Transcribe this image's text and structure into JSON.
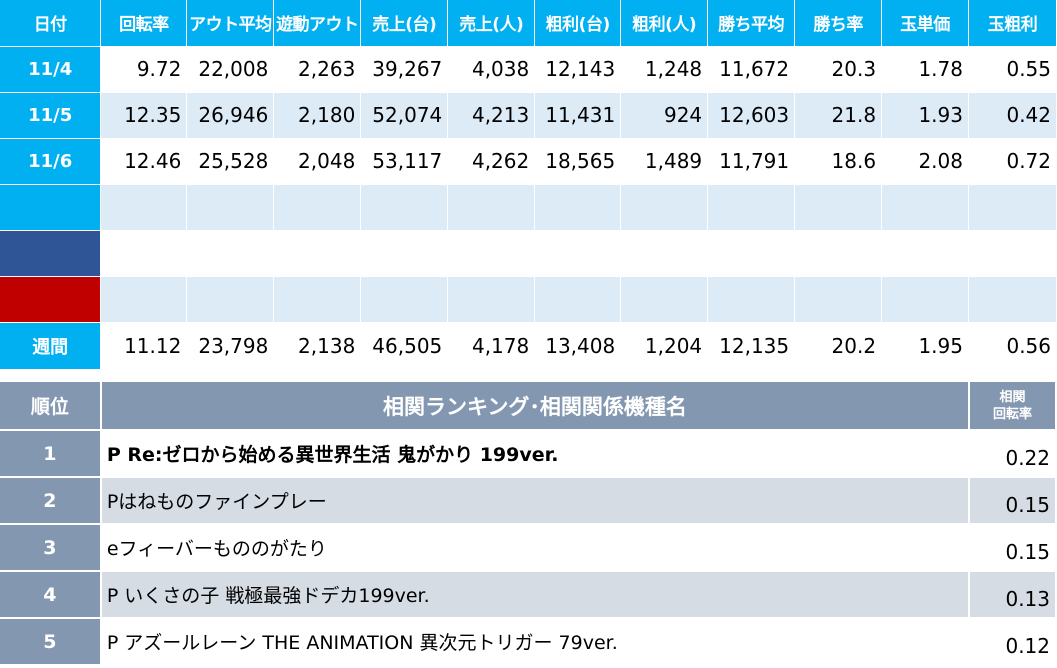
{
  "stats": {
    "headers": [
      "日付",
      "回転率",
      "アウト平均",
      "遊動アウト",
      "売上(台)",
      "売上(人)",
      "粗利(台)",
      "粗利(人)",
      "勝ち平均",
      "勝ち率",
      "玉単価",
      "玉粗利"
    ],
    "rows": [
      {
        "date": "11/4",
        "values": [
          "9.72",
          "22,008",
          "2,263",
          "39,267",
          "4,038",
          "12,143",
          "1,248",
          "11,672",
          "20.3",
          "1.78",
          "0.55"
        ]
      },
      {
        "date": "11/5",
        "values": [
          "12.35",
          "26,946",
          "2,180",
          "52,074",
          "4,213",
          "11,431",
          "924",
          "12,603",
          "21.8",
          "1.93",
          "0.42"
        ]
      },
      {
        "date": "11/6",
        "values": [
          "12.46",
          "25,528",
          "2,048",
          "53,117",
          "4,262",
          "18,565",
          "1,489",
          "11,791",
          "18.6",
          "2.08",
          "0.72"
        ]
      },
      {
        "date": "",
        "values": [
          "",
          "",
          "",
          "",
          "",
          "",
          "",
          "",
          "",
          "",
          ""
        ]
      },
      {
        "date": "",
        "values": [
          "",
          "",
          "",
          "",
          "",
          "",
          "",
          "",
          "",
          "",
          ""
        ]
      },
      {
        "date": "",
        "values": [
          "",
          "",
          "",
          "",
          "",
          "",
          "",
          "",
          "",
          "",
          ""
        ]
      }
    ],
    "weekly": {
      "label": "週間",
      "values": [
        "11.12",
        "23,798",
        "2,138",
        "46,505",
        "4,178",
        "13,408",
        "1,204",
        "12,135",
        "20.2",
        "1.95",
        "0.56"
      ]
    },
    "colors": {
      "header": "#00b0f0",
      "row_alt": "#ddebf7",
      "navy_cell": "#2f5597",
      "red_cell": "#c00000"
    }
  },
  "ranking": {
    "header_rank": "順位",
    "header_name": "相関ランキング･相関関係機種名",
    "header_corr_line1": "相関",
    "header_corr_line2": "回転率",
    "rows": [
      {
        "rank": "1",
        "name": "P Re:ゼロから始める異世界生活 鬼がかり 199ver.",
        "corr": "0.22"
      },
      {
        "rank": "2",
        "name": "Pはねものファインプレー",
        "corr": "0.15"
      },
      {
        "rank": "3",
        "name": "eフィーバーもののがたり",
        "corr": "0.15"
      },
      {
        "rank": "4",
        "name": "P いくさの子 戦極最強ドデカ199ver.",
        "corr": "0.13"
      },
      {
        "rank": "5",
        "name": "P アズールレーン THE ANIMATION 異次元トリガー 79ver.",
        "corr": "0.12"
      }
    ],
    "colors": {
      "header": "#8497b0",
      "row_alt": "#d6dce4"
    }
  }
}
